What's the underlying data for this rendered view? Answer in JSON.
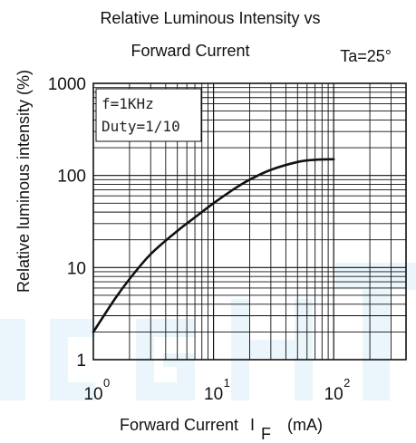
{
  "colors": {
    "axis": "#111111",
    "grid": "#111111",
    "curve": "#111111",
    "watermark": "#eaf6fb"
  },
  "chart_data": {
    "type": "line",
    "title_lines": [
      "Relative Luminous Intensity vs",
      "Forward Current"
    ],
    "condition": "Ta=25°",
    "xlabel": "Forward Current",
    "xlabel_symbol": "I",
    "xlabel_subscript": "F",
    "xlabel_unit": "(mA)",
    "ylabel": "Relative luminous intensity  (%)",
    "x_scale": "log",
    "y_scale": "log",
    "xlim": [
      1,
      400
    ],
    "ylim": [
      1,
      1000
    ],
    "grid": true,
    "x_ticks": [
      {
        "value": 1,
        "base": "10",
        "exp": "0"
      },
      {
        "value": 10,
        "base": "10",
        "exp": "1"
      },
      {
        "value": 100,
        "base": "10",
        "exp": "2"
      }
    ],
    "y_ticks": [
      {
        "value": 1,
        "label": "1"
      },
      {
        "value": 10,
        "label": "10"
      },
      {
        "value": 100,
        "label": "100"
      },
      {
        "value": 1000,
        "label": "1000"
      }
    ],
    "annotation_lines": [
      "f=1KHz",
      "Duty=1/10"
    ],
    "series": [
      {
        "x": [
          1,
          1.5,
          2,
          3,
          5,
          7,
          10,
          15,
          20,
          30,
          50,
          70,
          100
        ],
        "y": [
          2,
          4.5,
          7.5,
          14,
          25,
          35,
          50,
          72,
          90,
          115,
          140,
          148,
          150
        ]
      }
    ]
  }
}
